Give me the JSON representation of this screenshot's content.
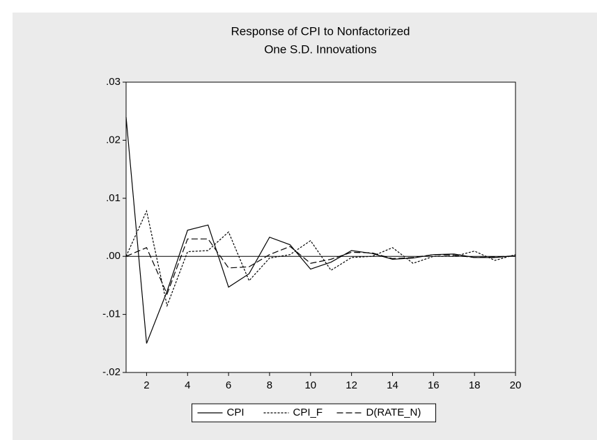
{
  "chart_data": {
    "type": "line",
    "title": "Response of CPI to Nonfactorized",
    "subtitle": "One S.D. Innovations",
    "x": [
      1,
      2,
      3,
      4,
      5,
      6,
      7,
      8,
      9,
      10,
      11,
      12,
      13,
      14,
      15,
      16,
      17,
      18,
      19,
      20
    ],
    "series": [
      {
        "name": "CPI",
        "color": "#000000",
        "line_style": "solid",
        "values": [
          0.024,
          -0.015,
          -0.006,
          0.0045,
          0.0054,
          -0.0053,
          -0.003,
          0.0033,
          0.002,
          -0.0022,
          -0.001,
          0.001,
          0.0005,
          -0.0005,
          -0.0003,
          0.0003,
          0.0004,
          -0.0002,
          -0.0002,
          0.0001
        ]
      },
      {
        "name": "CPI_F",
        "color": "#000000",
        "line_style": "dotted",
        "values": [
          0,
          0.0078,
          -0.0085,
          0.0008,
          0.001,
          0.0042,
          -0.0042,
          -0.0003,
          0.0003,
          0.0027,
          -0.0024,
          -0.0002,
          0,
          0.0015,
          -0.0012,
          0,
          0,
          0.0009,
          -0.0007,
          0.0003
        ]
      },
      {
        "name": "D(RATE_N)",
        "color": "#000000",
        "line_style": "dashed",
        "values": [
          0,
          0.0015,
          -0.0065,
          0.003,
          0.003,
          -0.002,
          -0.0018,
          0.0003,
          0.0017,
          -0.0012,
          -0.0005,
          0.0007,
          0.0006,
          -0.0004,
          -0.0002,
          0.0003,
          0.0002,
          -0.0002,
          -0.0001,
          0.0001
        ]
      }
    ],
    "xlim": [
      1,
      20
    ],
    "xticks": [
      2,
      4,
      6,
      8,
      10,
      12,
      14,
      16,
      18,
      20
    ],
    "ylim": [
      -0.02,
      0.03
    ],
    "yticks": [
      {
        "value": -0.02,
        "label": "-.02"
      },
      {
        "value": -0.01,
        "label": "-.01"
      },
      {
        "value": 0,
        "label": ".00"
      },
      {
        "value": 0.01,
        "label": ".01"
      },
      {
        "value": 0.02,
        "label": ".02"
      },
      {
        "value": 0.03,
        "label": ".03"
      }
    ],
    "grid": false,
    "zero_line": true,
    "legend": "bottom"
  }
}
